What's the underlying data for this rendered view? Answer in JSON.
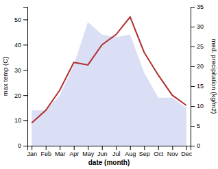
{
  "chart_data": {
    "type": "line",
    "categories": [
      "Jan",
      "Feb",
      "Mar",
      "Apr",
      "May",
      "Jun",
      "Jul",
      "Aug",
      "Sep",
      "Oct",
      "Nov",
      "Dec"
    ],
    "series": [
      {
        "type": "area",
        "color": "#b0b8e8",
        "values": [
          14,
          14,
          20,
          32,
          49,
          44,
          43,
          44,
          29,
          19,
          19,
          15
        ]
      },
      {
        "type": "line",
        "color": "#b03030",
        "values": [
          9,
          14,
          22,
          33,
          32,
          40,
          44,
          51,
          37,
          28,
          20,
          16
        ]
      }
    ],
    "xlabel": "date (month)",
    "ylabel": "max temp (C)",
    "y2label": "med. precipitation (kg/m2)",
    "ylim": [
      0,
      55
    ],
    "yticks": [
      0,
      10,
      20,
      30,
      40,
      50
    ],
    "y2lim": [
      0,
      35
    ],
    "y2ticks": [
      0,
      5,
      10,
      15,
      20,
      25,
      30,
      35
    ],
    "grid": false
  }
}
